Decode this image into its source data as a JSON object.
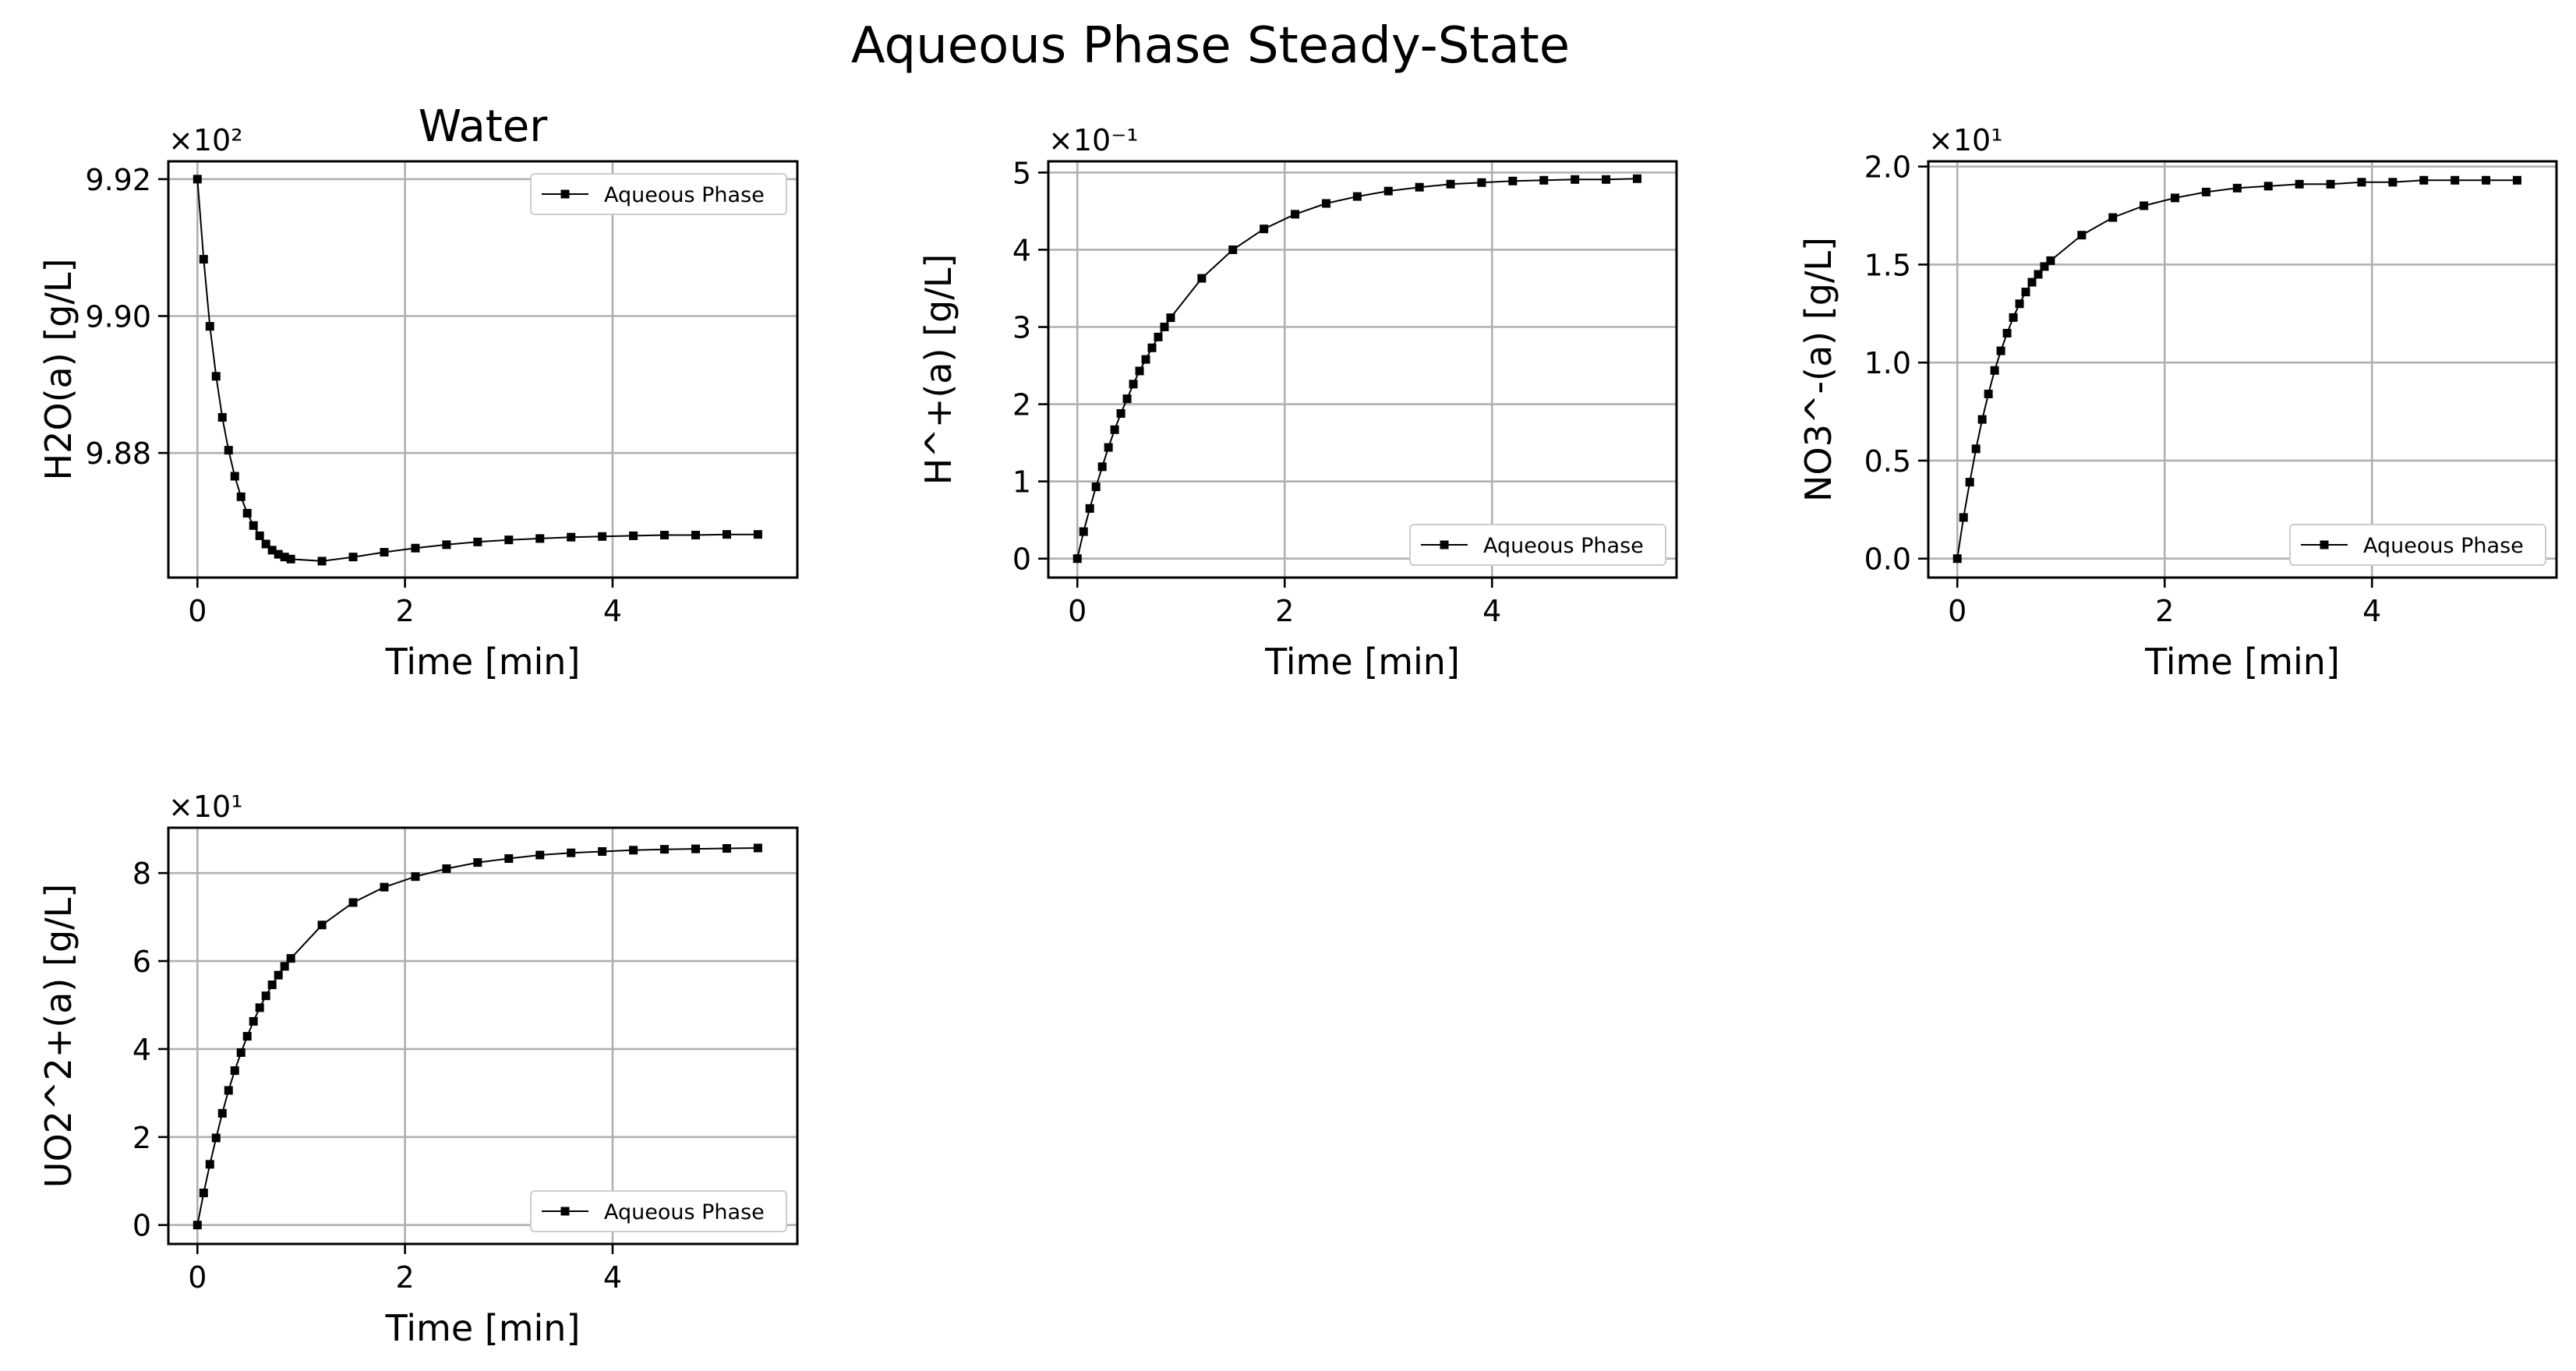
{
  "figure_title": "Aqueous Phase Steady-State",
  "chart_data": [
    {
      "type": "line",
      "title": "Water",
      "xlabel": "Time [min]",
      "ylabel": "H2O(a) [g/L]",
      "offset_text": "×10²",
      "legend_position": "upper right",
      "xlim": [
        -0.28,
        5.78
      ],
      "ylim": [
        9.8618,
        9.9226
      ],
      "xticks": [
        0,
        2,
        4
      ],
      "xtick_labels": [
        "0",
        "2",
        "4"
      ],
      "yticks": [
        9.92,
        9.9,
        9.88
      ],
      "ytick_labels": [
        "9.92",
        "9.90",
        "9.88"
      ],
      "grid": true,
      "x": [
        0,
        0.06,
        0.12,
        0.18,
        0.24,
        0.3,
        0.36,
        0.42,
        0.48,
        0.54,
        0.6,
        0.66,
        0.72,
        0.78,
        0.84,
        0.9,
        1.2,
        1.5,
        1.8,
        2.1,
        2.4,
        2.7,
        3.0,
        3.3,
        3.6,
        3.9,
        4.2,
        4.5,
        4.8,
        5.1,
        5.4
      ],
      "series": [
        {
          "name": "Aqueous Phase",
          "values": [
            9.92,
            9.9083,
            9.8985,
            9.8912,
            9.8852,
            9.8804,
            9.8766,
            9.8736,
            9.8712,
            9.8694,
            9.8679,
            9.8667,
            9.8658,
            9.8652,
            9.8648,
            9.8645,
            9.8642,
            9.8648,
            9.8655,
            9.8661,
            9.8666,
            9.867,
            9.8673,
            9.8675,
            9.8677,
            9.8678,
            9.8679,
            9.868,
            9.868,
            9.8681,
            9.8681
          ]
        }
      ]
    },
    {
      "type": "line",
      "title": "",
      "xlabel": "Time [min]",
      "ylabel": "H^+(a) [g/L]",
      "offset_text": "×10⁻¹",
      "legend_position": "lower right",
      "xlim": [
        -0.28,
        5.78
      ],
      "ylim": [
        -0.245,
        5.145
      ],
      "xticks": [
        0,
        2,
        4
      ],
      "xtick_labels": [
        "0",
        "2",
        "4"
      ],
      "yticks": [
        0,
        1,
        2,
        3,
        4,
        5
      ],
      "ytick_labels": [
        "0",
        "1",
        "2",
        "3",
        "4",
        "5"
      ],
      "grid": true,
      "x": [
        0,
        0.06,
        0.12,
        0.18,
        0.24,
        0.3,
        0.36,
        0.42,
        0.48,
        0.54,
        0.6,
        0.66,
        0.72,
        0.78,
        0.84,
        0.9,
        1.2,
        1.5,
        1.8,
        2.1,
        2.4,
        2.7,
        3.0,
        3.3,
        3.6,
        3.9,
        4.2,
        4.5,
        4.8,
        5.1,
        5.4
      ],
      "series": [
        {
          "name": "Aqueous Phase",
          "values": [
            0.0,
            0.35,
            0.65,
            0.93,
            1.19,
            1.44,
            1.67,
            1.88,
            2.07,
            2.26,
            2.43,
            2.58,
            2.73,
            2.87,
            3.0,
            3.12,
            3.63,
            4.0,
            4.27,
            4.46,
            4.6,
            4.69,
            4.76,
            4.81,
            4.85,
            4.87,
            4.89,
            4.9,
            4.91,
            4.91,
            4.92
          ]
        }
      ]
    },
    {
      "type": "line",
      "title": "",
      "xlabel": "Time [min]",
      "ylabel": "NO3^-(a) [g/L]",
      "offset_text": "×10¹",
      "legend_position": "lower right",
      "xlim": [
        -0.28,
        5.78
      ],
      "ylim": [
        -0.0965,
        2.0265
      ],
      "xticks": [
        0,
        2,
        4
      ],
      "xtick_labels": [
        "0",
        "2",
        "4"
      ],
      "yticks": [
        0.0,
        0.5,
        1.0,
        1.5,
        2.0
      ],
      "ytick_labels": [
        "0.0",
        "0.5",
        "1.0",
        "1.5",
        "2.0"
      ],
      "grid": true,
      "x": [
        0,
        0.06,
        0.12,
        0.18,
        0.24,
        0.3,
        0.36,
        0.42,
        0.48,
        0.54,
        0.6,
        0.66,
        0.72,
        0.78,
        0.84,
        0.9,
        1.2,
        1.5,
        1.8,
        2.1,
        2.4,
        2.7,
        3.0,
        3.3,
        3.6,
        3.9,
        4.2,
        4.5,
        4.8,
        5.1,
        5.4
      ],
      "series": [
        {
          "name": "Aqueous Phase",
          "values": [
            0.0,
            0.21,
            0.39,
            0.56,
            0.71,
            0.84,
            0.96,
            1.06,
            1.15,
            1.23,
            1.3,
            1.36,
            1.41,
            1.45,
            1.49,
            1.52,
            1.65,
            1.74,
            1.8,
            1.84,
            1.87,
            1.89,
            1.9,
            1.91,
            1.91,
            1.92,
            1.92,
            1.93,
            1.93,
            1.93,
            1.93
          ]
        }
      ]
    },
    {
      "type": "line",
      "title": "",
      "xlabel": "Time [min]",
      "ylabel": "UO2^2+(a) [g/L]",
      "offset_text": "×10¹",
      "legend_position": "lower right",
      "xlim": [
        -0.28,
        5.78
      ],
      "ylim": [
        -0.43,
        9.03
      ],
      "xticks": [
        0,
        2,
        4
      ],
      "xtick_labels": [
        "0",
        "2",
        "4"
      ],
      "yticks": [
        0,
        2,
        4,
        6,
        8
      ],
      "ytick_labels": [
        "0",
        "2",
        "4",
        "6",
        "8"
      ],
      "grid": true,
      "x": [
        0,
        0.06,
        0.12,
        0.18,
        0.24,
        0.3,
        0.36,
        0.42,
        0.48,
        0.54,
        0.6,
        0.66,
        0.72,
        0.78,
        0.84,
        0.9,
        1.2,
        1.5,
        1.8,
        2.1,
        2.4,
        2.7,
        3.0,
        3.3,
        3.6,
        3.9,
        4.2,
        4.5,
        4.8,
        5.1,
        5.4
      ],
      "series": [
        {
          "name": "Aqueous Phase",
          "values": [
            0.0,
            0.73,
            1.38,
            1.98,
            2.54,
            3.06,
            3.51,
            3.92,
            4.29,
            4.63,
            4.94,
            5.21,
            5.46,
            5.68,
            5.88,
            6.06,
            6.82,
            7.33,
            7.68,
            7.92,
            8.1,
            8.24,
            8.33,
            8.41,
            8.46,
            8.49,
            8.52,
            8.54,
            8.55,
            8.56,
            8.57
          ]
        }
      ]
    }
  ]
}
